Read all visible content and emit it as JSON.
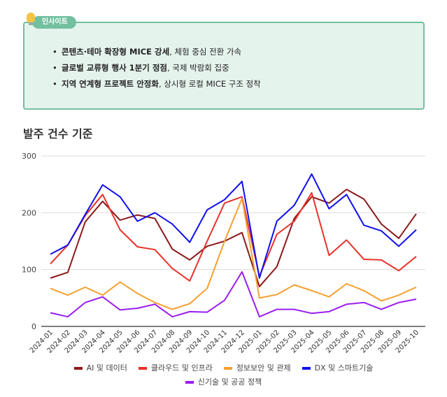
{
  "insight": {
    "badge": "인사이트",
    "items": [
      {
        "bold": "콘텐츠·테마 확장형 MICE 강세",
        "rest": ", 체험 중심 전환 가속"
      },
      {
        "bold": "글로벌 교류형 행사 1분기 정점",
        "rest": ", 국제 박람회 집중"
      },
      {
        "bold": "지역 연계형 프로젝트 안정화",
        "rest": ", 상시형 로컬 MICE 구조 정착"
      }
    ]
  },
  "section_title": "발주 건수 기준",
  "chart_data": {
    "type": "line",
    "title": "",
    "xlabel": "",
    "ylabel": "",
    "ylim": [
      0,
      300
    ],
    "yticks": [
      "0",
      "100",
      "200",
      "300"
    ],
    "grid": true,
    "legend_position": "bottom",
    "categories": [
      "2024-01",
      "2024-02",
      "2024-03",
      "2024-04",
      "2024-05",
      "2024-06",
      "2024-07",
      "2024-08",
      "2024-09",
      "2024-10",
      "2024-11",
      "2024-12",
      "2025-01",
      "2025-02",
      "2025-03",
      "2025-04",
      "2025-05",
      "2025-06",
      "2025-07",
      "2025-08",
      "2025-09",
      "2025-10"
    ],
    "series": [
      {
        "name": "AI 및 데이터",
        "color": "#8b1a1a",
        "values": [
          85,
          95,
          184,
          220,
          187,
          196,
          190,
          136,
          117,
          141,
          150,
          165,
          70,
          105,
          190,
          228,
          217,
          241,
          224,
          180,
          155,
          198
        ]
      },
      {
        "name": "클라우드 및 인프라",
        "color": "#e8322a",
        "values": [
          110,
          143,
          195,
          232,
          170,
          140,
          135,
          102,
          80,
          150,
          217,
          228,
          88,
          162,
          185,
          235,
          125,
          152,
          118,
          117,
          98,
          123
        ]
      },
      {
        "name": "정보보안 및 관제",
        "color": "#f5a030",
        "values": [
          67,
          55,
          69,
          55,
          78,
          58,
          42,
          30,
          40,
          67,
          150,
          225,
          50,
          56,
          73,
          63,
          52,
          75,
          63,
          45,
          55,
          69
        ]
      },
      {
        "name": "DX 및 스마트기술",
        "color": "#1010f0",
        "values": [
          127,
          143,
          197,
          249,
          228,
          185,
          200,
          180,
          148,
          205,
          223,
          255,
          85,
          185,
          213,
          268,
          207,
          232,
          178,
          168,
          141,
          170
        ]
      },
      {
        "name": "신기술 및 공공 정책",
        "color": "#9b1ef0",
        "values": [
          24,
          17,
          42,
          52,
          29,
          32,
          39,
          17,
          26,
          25,
          46,
          96,
          17,
          30,
          30,
          23,
          26,
          39,
          42,
          30,
          42,
          48
        ]
      }
    ]
  }
}
